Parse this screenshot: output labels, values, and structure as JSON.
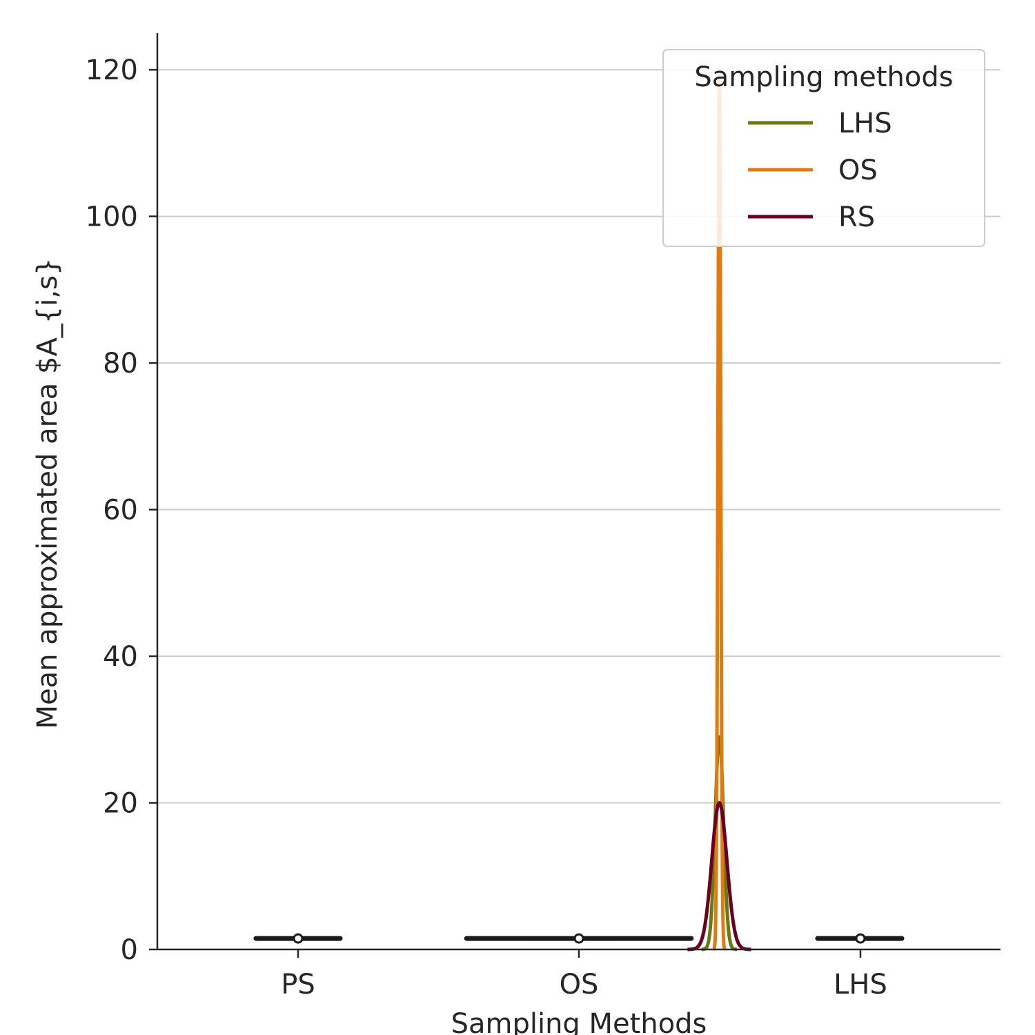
{
  "chart_data": {
    "type": "line",
    "xlabel": "Sampling Methods",
    "ylabel": "Mean approximated area $A_{i,s}",
    "categories": [
      "PS",
      "OS",
      "LHS"
    ],
    "ylim": [
      0,
      125
    ],
    "yticks": [
      0,
      20,
      40,
      60,
      80,
      100,
      120
    ],
    "grid": "horizontal",
    "legend": {
      "title": "Sampling methods",
      "placement": "top-right",
      "entries": [
        "LHS",
        "OS",
        "RS"
      ]
    },
    "summary_markers": [
      {
        "category": "PS",
        "center": 1.5,
        "span": [
          0.85,
          1.15
        ]
      },
      {
        "category": "OS",
        "center": 1.5,
        "span": [
          0.6,
          1.4
        ]
      },
      {
        "category": "LHS",
        "center": 1.5,
        "span": [
          0.85,
          1.15
        ]
      }
    ],
    "series": [
      {
        "name": "LHS",
        "color": "#6b7a10",
        "center": 1.5,
        "width": 0.015,
        "peak": 29
      },
      {
        "name": "OS",
        "color": "#e07b10",
        "center": 1.5,
        "width": 0.005,
        "peak": 120
      },
      {
        "name": "RS",
        "color": "#6b0020",
        "center": 1.5,
        "width": 0.027,
        "peak": 20
      }
    ]
  }
}
